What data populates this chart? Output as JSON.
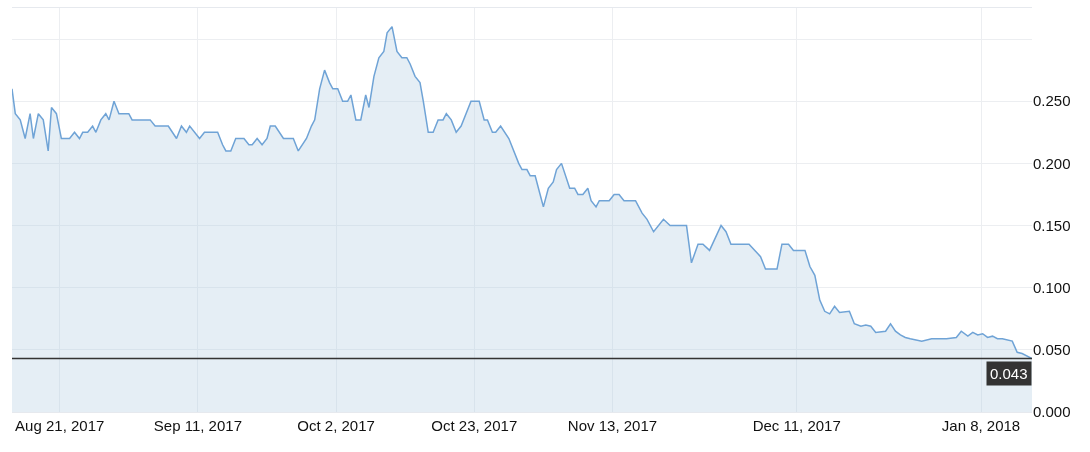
{
  "chart_data": {
    "type": "area",
    "grid": true,
    "marker": "none",
    "line_style": "solid",
    "xlim": [
      "2017-08-13T18:00",
      "2018-01-15T18:00"
    ],
    "xticks": [
      {
        "value": "2017-08-21",
        "label": "Aug 21, 2017"
      },
      {
        "value": "2017-09-11",
        "label": "Sep 11, 2017"
      },
      {
        "value": "2017-10-02",
        "label": "Oct 2, 2017"
      },
      {
        "value": "2017-10-23",
        "label": "Oct 23, 2017"
      },
      {
        "value": "2017-11-13",
        "label": "Nov 13, 2017"
      },
      {
        "value": "2017-12-11",
        "label": "Dec 11, 2017"
      },
      {
        "value": "2018-01-08",
        "label": "Jan 8, 2018"
      }
    ],
    "ylim": [
      0,
      0.325
    ],
    "yticks": [
      {
        "value": 0,
        "label": "0.000"
      },
      {
        "value": 0.05,
        "label": "0.050"
      },
      {
        "value": 0.1,
        "label": "0.100"
      },
      {
        "value": 0.15,
        "label": "0.150"
      },
      {
        "value": 0.2,
        "label": "0.200"
      },
      {
        "value": 0.25,
        "label": "0.250"
      },
      {
        "value": 0.3,
        "label": null
      }
    ],
    "ref_lines": [
      {
        "axis": "y",
        "value": 0.043,
        "label": "0.043",
        "color": "#333333"
      }
    ],
    "series": [
      {
        "color": "#6fa3d6",
        "x": [
          "2017-08-13T18:00",
          "2017-08-14T06:00",
          "2017-08-15",
          "2017-08-15T18:00",
          "2017-08-16T12:00",
          "2017-08-17",
          "2017-08-17T18:00",
          "2017-08-18T12:00",
          "2017-08-19T06:00",
          "2017-08-19T18:00",
          "2017-08-20T12:00",
          "2017-08-21T06:00",
          "2017-08-22T12:00",
          "2017-08-23T06:00",
          "2017-08-24",
          "2017-08-24T12:00",
          "2017-08-25T06:00",
          "2017-08-26",
          "2017-08-26T12:00",
          "2017-08-27T06:00",
          "2017-08-28",
          "2017-08-28T12:00",
          "2017-08-29T06:00",
          "2017-08-30",
          "2017-08-31T12:00",
          "2017-09-01",
          "2017-09-03T18:00",
          "2017-09-04T12:00",
          "2017-09-06T12:00",
          "2017-09-07T18:00",
          "2017-09-08T12:00",
          "2017-09-09T06:00",
          "2017-09-09T18:00",
          "2017-09-11T06:00",
          "2017-09-12",
          "2017-09-14",
          "2017-09-14T18:00",
          "2017-09-15T06:00",
          "2017-09-16",
          "2017-09-16T18:00",
          "2017-09-18",
          "2017-09-18T18:00",
          "2017-09-19T06:00",
          "2017-09-20",
          "2017-09-20T18:00",
          "2017-09-21T12:00",
          "2017-09-22",
          "2017-09-22T18:00",
          "2017-09-24",
          "2017-09-25T12:00",
          "2017-09-26T06:00",
          "2017-09-27T12:00",
          "2017-09-28T06:00",
          "2017-09-28T18:00",
          "2017-09-29T12:00",
          "2017-09-30T06:00",
          "2017-10-01",
          "2017-10-01T12:00",
          "2017-10-02T06:00",
          "2017-10-03",
          "2017-10-03T18:00",
          "2017-10-04T06:00",
          "2017-10-05",
          "2017-10-05T18:00",
          "2017-10-06T12:00",
          "2017-10-07",
          "2017-10-07T18:00",
          "2017-10-08T12:00",
          "2017-10-09T06:00",
          "2017-10-09T18:00",
          "2017-10-10T12:00",
          "2017-10-11T06:00",
          "2017-10-12",
          "2017-10-12T18:00",
          "2017-10-13T06:00",
          "2017-10-14",
          "2017-10-14T18:00",
          "2017-10-15T06:00",
          "2017-10-16",
          "2017-10-16T18:00",
          "2017-10-17T12:00",
          "2017-10-18T06:00",
          "2017-10-18T18:00",
          "2017-10-19T12:00",
          "2017-10-20T06:00",
          "2017-10-21",
          "2017-10-22T12:00",
          "2017-10-23T18:00",
          "2017-10-24T12:00",
          "2017-10-25",
          "2017-10-25T18:00",
          "2017-10-26T06:00",
          "2017-10-27",
          "2017-10-28T06:00",
          "2017-10-29T18:00",
          "2017-10-30T06:00",
          "2017-10-31",
          "2017-10-31T12:00",
          "2017-11-01T06:00",
          "2017-11-02",
          "2017-11-02T12:00",
          "2017-11-03T06:00",
          "2017-11-04",
          "2017-11-04T12:00",
          "2017-11-05T06:00",
          "2017-11-06T12:00",
          "2017-11-07T06:00",
          "2017-11-07T18:00",
          "2017-11-08T12:00",
          "2017-11-09T06:00",
          "2017-11-09T18:00",
          "2017-11-10T12:00",
          "2017-11-11",
          "2017-11-12T12:00",
          "2017-11-13T06:00",
          "2017-11-14",
          "2017-11-14T18:00",
          "2017-11-16T12:00",
          "2017-11-17T12:00",
          "2017-11-18T06:00",
          "2017-11-19T06:00",
          "2017-11-20T18:00",
          "2017-11-21T18:00",
          "2017-11-24T06:00",
          "2017-11-25",
          "2017-11-26",
          "2017-11-26T18:00",
          "2017-11-27T18:00",
          "2017-11-29T12:00",
          "2017-11-30T06:00",
          "2017-12-01",
          "2017-12-03T18:00",
          "2017-12-05T12:00",
          "2017-12-06T06:00",
          "2017-12-08",
          "2017-12-08T18:00",
          "2017-12-09T18:00",
          "2017-12-10T12:00",
          "2017-12-12T06:00",
          "2017-12-13",
          "2017-12-13T18:00",
          "2017-12-14T12:00",
          "2017-12-15T06:00",
          "2017-12-16",
          "2017-12-16T18:00",
          "2017-12-17T12:00",
          "2017-12-19",
          "2017-12-19T18:00",
          "2017-12-20T18:00",
          "2017-12-21T12:00",
          "2017-12-22T06:00",
          "2017-12-23",
          "2017-12-24T12:00",
          "2017-12-25T06:00",
          "2017-12-26",
          "2017-12-26T18:00",
          "2017-12-27T12:00",
          "2017-12-28T06:00",
          "2017-12-30",
          "2017-12-31T12:00",
          "2018-01-02",
          "2018-01-02T18:00",
          "2018-01-04T06:00",
          "2018-01-05",
          "2018-01-06",
          "2018-01-06T18:00",
          "2018-01-07T12:00",
          "2018-01-08T06:00",
          "2018-01-09",
          "2018-01-09T18:00",
          "2018-01-10T12:00",
          "2018-01-11T06:00",
          "2018-01-12T18:00",
          "2018-01-13T12:00",
          "2018-01-14T06:00",
          "2018-01-15T18:00"
        ],
        "values": [
          0.26,
          0.24,
          0.235,
          0.22,
          0.24,
          0.22,
          0.24,
          0.235,
          0.21,
          0.245,
          0.24,
          0.22,
          0.22,
          0.225,
          0.22,
          0.225,
          0.225,
          0.23,
          0.225,
          0.235,
          0.24,
          0.235,
          0.25,
          0.24,
          0.24,
          0.235,
          0.235,
          0.23,
          0.23,
          0.22,
          0.23,
          0.225,
          0.23,
          0.22,
          0.225,
          0.225,
          0.215,
          0.21,
          0.21,
          0.22,
          0.22,
          0.215,
          0.215,
          0.22,
          0.215,
          0.22,
          0.23,
          0.23,
          0.22,
          0.22,
          0.21,
          0.22,
          0.23,
          0.235,
          0.26,
          0.275,
          0.265,
          0.26,
          0.26,
          0.25,
          0.25,
          0.255,
          0.235,
          0.235,
          0.255,
          0.245,
          0.27,
          0.285,
          0.29,
          0.305,
          0.31,
          0.29,
          0.285,
          0.285,
          0.28,
          0.27,
          0.265,
          0.25,
          0.225,
          0.225,
          0.235,
          0.235,
          0.24,
          0.235,
          0.225,
          0.23,
          0.25,
          0.25,
          0.235,
          0.235,
          0.225,
          0.225,
          0.23,
          0.22,
          0.2,
          0.195,
          0.195,
          0.19,
          0.19,
          0.175,
          0.165,
          0.18,
          0.185,
          0.195,
          0.2,
          0.18,
          0.18,
          0.175,
          0.175,
          0.18,
          0.17,
          0.165,
          0.17,
          0.17,
          0.175,
          0.175,
          0.17,
          0.17,
          0.16,
          0.155,
          0.145,
          0.155,
          0.15,
          0.15,
          0.12,
          0.135,
          0.135,
          0.13,
          0.15,
          0.145,
          0.135,
          0.135,
          0.125,
          0.115,
          0.115,
          0.135,
          0.135,
          0.13,
          0.13,
          0.117,
          0.11,
          0.09,
          0.081,
          0.079,
          0.085,
          0.08,
          0.081,
          0.071,
          0.069,
          0.07,
          0.069,
          0.064,
          0.065,
          0.071,
          0.065,
          0.062,
          0.06,
          0.059,
          0.057,
          0.059,
          0.059,
          0.059,
          0.06,
          0.065,
          0.061,
          0.064,
          0.062,
          0.063,
          0.06,
          0.061,
          0.059,
          0.059,
          0.057,
          0.048,
          0.047,
          0.043
        ]
      }
    ]
  }
}
